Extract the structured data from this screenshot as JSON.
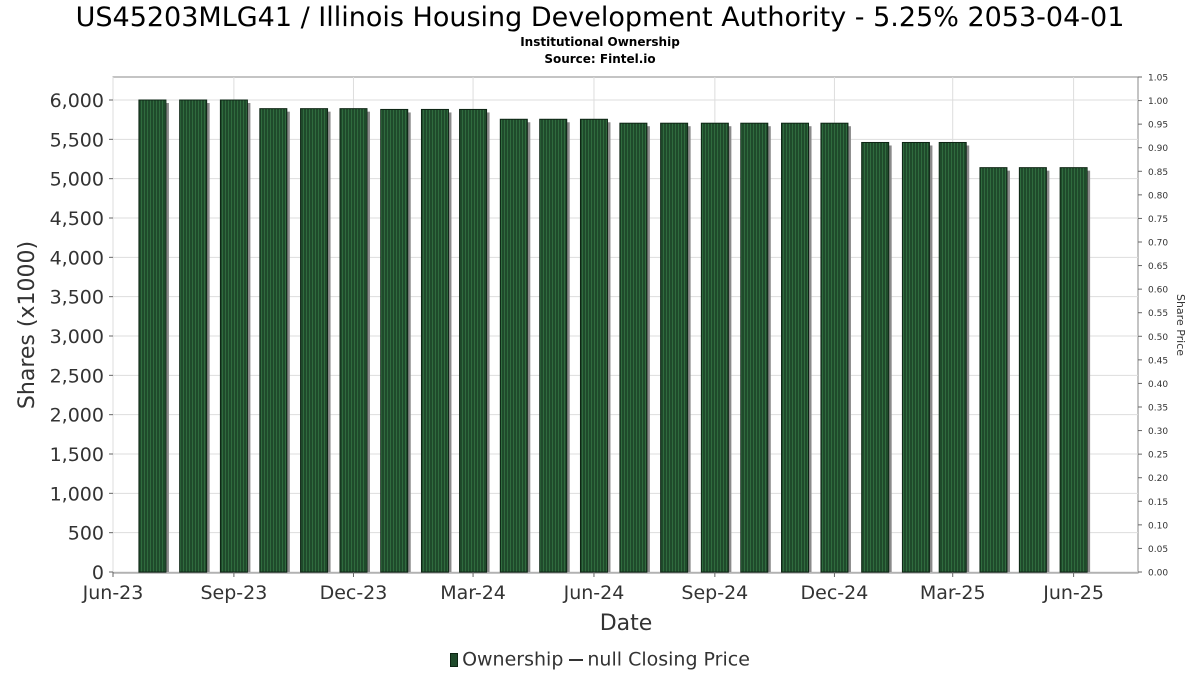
{
  "header": {
    "title": "US45203MLG41 / Illinois Housing Development Authority - 5.25% 2053-04-01",
    "subtitle": "Institutional Ownership",
    "source": "Source: Fintel.io"
  },
  "legend": {
    "ownership_label": "Ownership",
    "price_label": "null Closing Price"
  },
  "colors": {
    "bar": "#1f4a2b",
    "bar_stripe": "#2f6b3e",
    "bar_shadow": "#8a8a8a",
    "grid": "#dddddd",
    "axis": "#888888"
  },
  "chart_data": {
    "type": "bar",
    "title": "US45203MLG41 / Illinois Housing Development Authority - 5.25% 2053-04-01",
    "xlabel": "Date",
    "ylabel": "Shares (x1000)",
    "y2label": "Share Price",
    "x_ticks": [
      "Jun-23",
      "Sep-23",
      "Dec-23",
      "Mar-24",
      "Jun-24",
      "Sep-24",
      "Dec-24",
      "Mar-25",
      "Jun-25"
    ],
    "x_range": [
      "2023-06-01",
      "2025-07-20"
    ],
    "dates": [
      "2023-07-01",
      "2023-08-01",
      "2023-09-01",
      "2023-10-01",
      "2023-11-01",
      "2023-12-01",
      "2024-01-01",
      "2024-02-01",
      "2024-03-01",
      "2024-04-01",
      "2024-05-01",
      "2024-06-01",
      "2024-07-01",
      "2024-08-01",
      "2024-09-01",
      "2024-10-01",
      "2024-11-01",
      "2024-12-01",
      "2025-01-01",
      "2025-02-01",
      "2025-03-01",
      "2025-04-01",
      "2025-05-01",
      "2025-06-01"
    ],
    "values": [
      6000,
      6000,
      6000,
      5890,
      5890,
      5890,
      5880,
      5880,
      5880,
      5755,
      5755,
      5755,
      5705,
      5705,
      5705,
      5705,
      5705,
      5705,
      5460,
      5460,
      5460,
      5140,
      5140,
      5140
    ],
    "ylim": [
      0,
      6000
    ],
    "y_ticks": [
      0,
      500,
      1000,
      1500,
      2000,
      2500,
      3000,
      3500,
      4000,
      4500,
      5000,
      5500,
      6000
    ],
    "y_tick_labels": [
      "0",
      "500",
      "1,000",
      "1,500",
      "2,000",
      "2,500",
      "3,000",
      "3,500",
      "4,000",
      "4,500",
      "5,000",
      "5,500",
      "6,000"
    ],
    "y2lim": [
      0,
      1.05
    ],
    "y2_tick_labels": [
      "0.00",
      "0.05",
      "0.10",
      "0.15",
      "0.20",
      "0.25",
      "0.30",
      "0.35",
      "0.40",
      "0.45",
      "0.50",
      "0.55",
      "0.60",
      "0.65",
      "0.70",
      "0.75",
      "0.80",
      "0.85",
      "0.90",
      "0.95",
      "1.00",
      "1.05"
    ],
    "grid": true,
    "legend_position": "bottom"
  }
}
